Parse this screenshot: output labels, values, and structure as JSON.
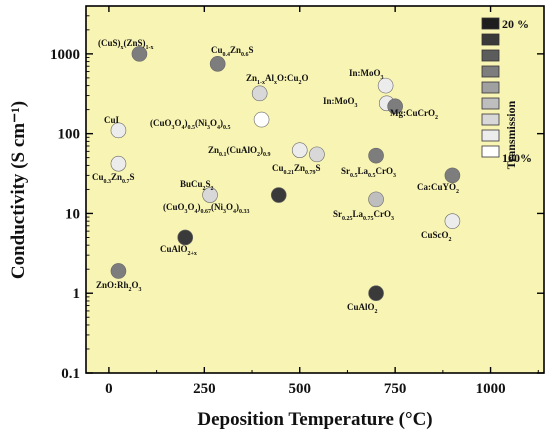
{
  "chart_data": {
    "type": "scatter",
    "title": "",
    "xlabel": "Deposition Temperature (°C)",
    "ylabel": "Conductivity (S cm⁻¹)",
    "xlim": [
      -60,
      1140
    ],
    "ylim_log10": [
      -1,
      3.6
    ],
    "x_ticks": [
      0,
      250,
      500,
      750,
      1000
    ],
    "x_tick_labels": [
      "0",
      "250",
      "500",
      "750",
      "1000"
    ],
    "y_ticks_log10": [
      -1,
      0,
      1,
      2,
      3
    ],
    "y_tick_labels": [
      "0.1",
      "1",
      "10",
      "100",
      "1000"
    ],
    "background": "#f8f4b4",
    "grid": false,
    "legend": {
      "title": "Transmission",
      "placement": "top-right",
      "top_label": "20 %",
      "bottom_label": "100%",
      "colors": [
        "#1e1e1e",
        "#3a3a3a",
        "#5c5c5c",
        "#7d7d7d",
        "#a0a0a0",
        "#bebebe",
        "#d8d8d8",
        "#ececec",
        "#ffffff"
      ]
    },
    "points": [
      {
        "x": 80,
        "y": 1000,
        "color": "#7d7d7d"
      },
      {
        "x": 285,
        "y": 750,
        "color": "#7d7d7d"
      },
      {
        "x": 395,
        "y": 320,
        "color": "#d8d8d8"
      },
      {
        "x": 400,
        "y": 150,
        "color": "#ffffff"
      },
      {
        "x": 25,
        "y": 110,
        "color": "#ececec"
      },
      {
        "x": 25,
        "y": 42,
        "color": "#ececec"
      },
      {
        "x": 500,
        "y": 62,
        "color": "#ececec"
      },
      {
        "x": 545,
        "y": 55,
        "color": "#d8d8d8"
      },
      {
        "x": 265,
        "y": 17,
        "color": "#d8d8d8"
      },
      {
        "x": 445,
        "y": 17,
        "color": "#3a3a3a"
      },
      {
        "x": 200,
        "y": 5,
        "color": "#3a3a3a"
      },
      {
        "x": 25,
        "y": 1.9,
        "color": "#7d7d7d"
      },
      {
        "x": 700,
        "y": 1,
        "color": "#3a3a3a"
      },
      {
        "x": 725,
        "y": 400,
        "color": "#ececec"
      },
      {
        "x": 728,
        "y": 240,
        "color": "#ececec"
      },
      {
        "x": 750,
        "y": 220,
        "color": "#7d7d7d"
      },
      {
        "x": 700,
        "y": 53,
        "color": "#7d7d7d"
      },
      {
        "x": 700,
        "y": 15,
        "color": "#bebebe"
      },
      {
        "x": 900,
        "y": 30,
        "color": "#7d7d7d"
      },
      {
        "x": 900,
        "y": 8,
        "color": "#ececec"
      }
    ]
  }
}
